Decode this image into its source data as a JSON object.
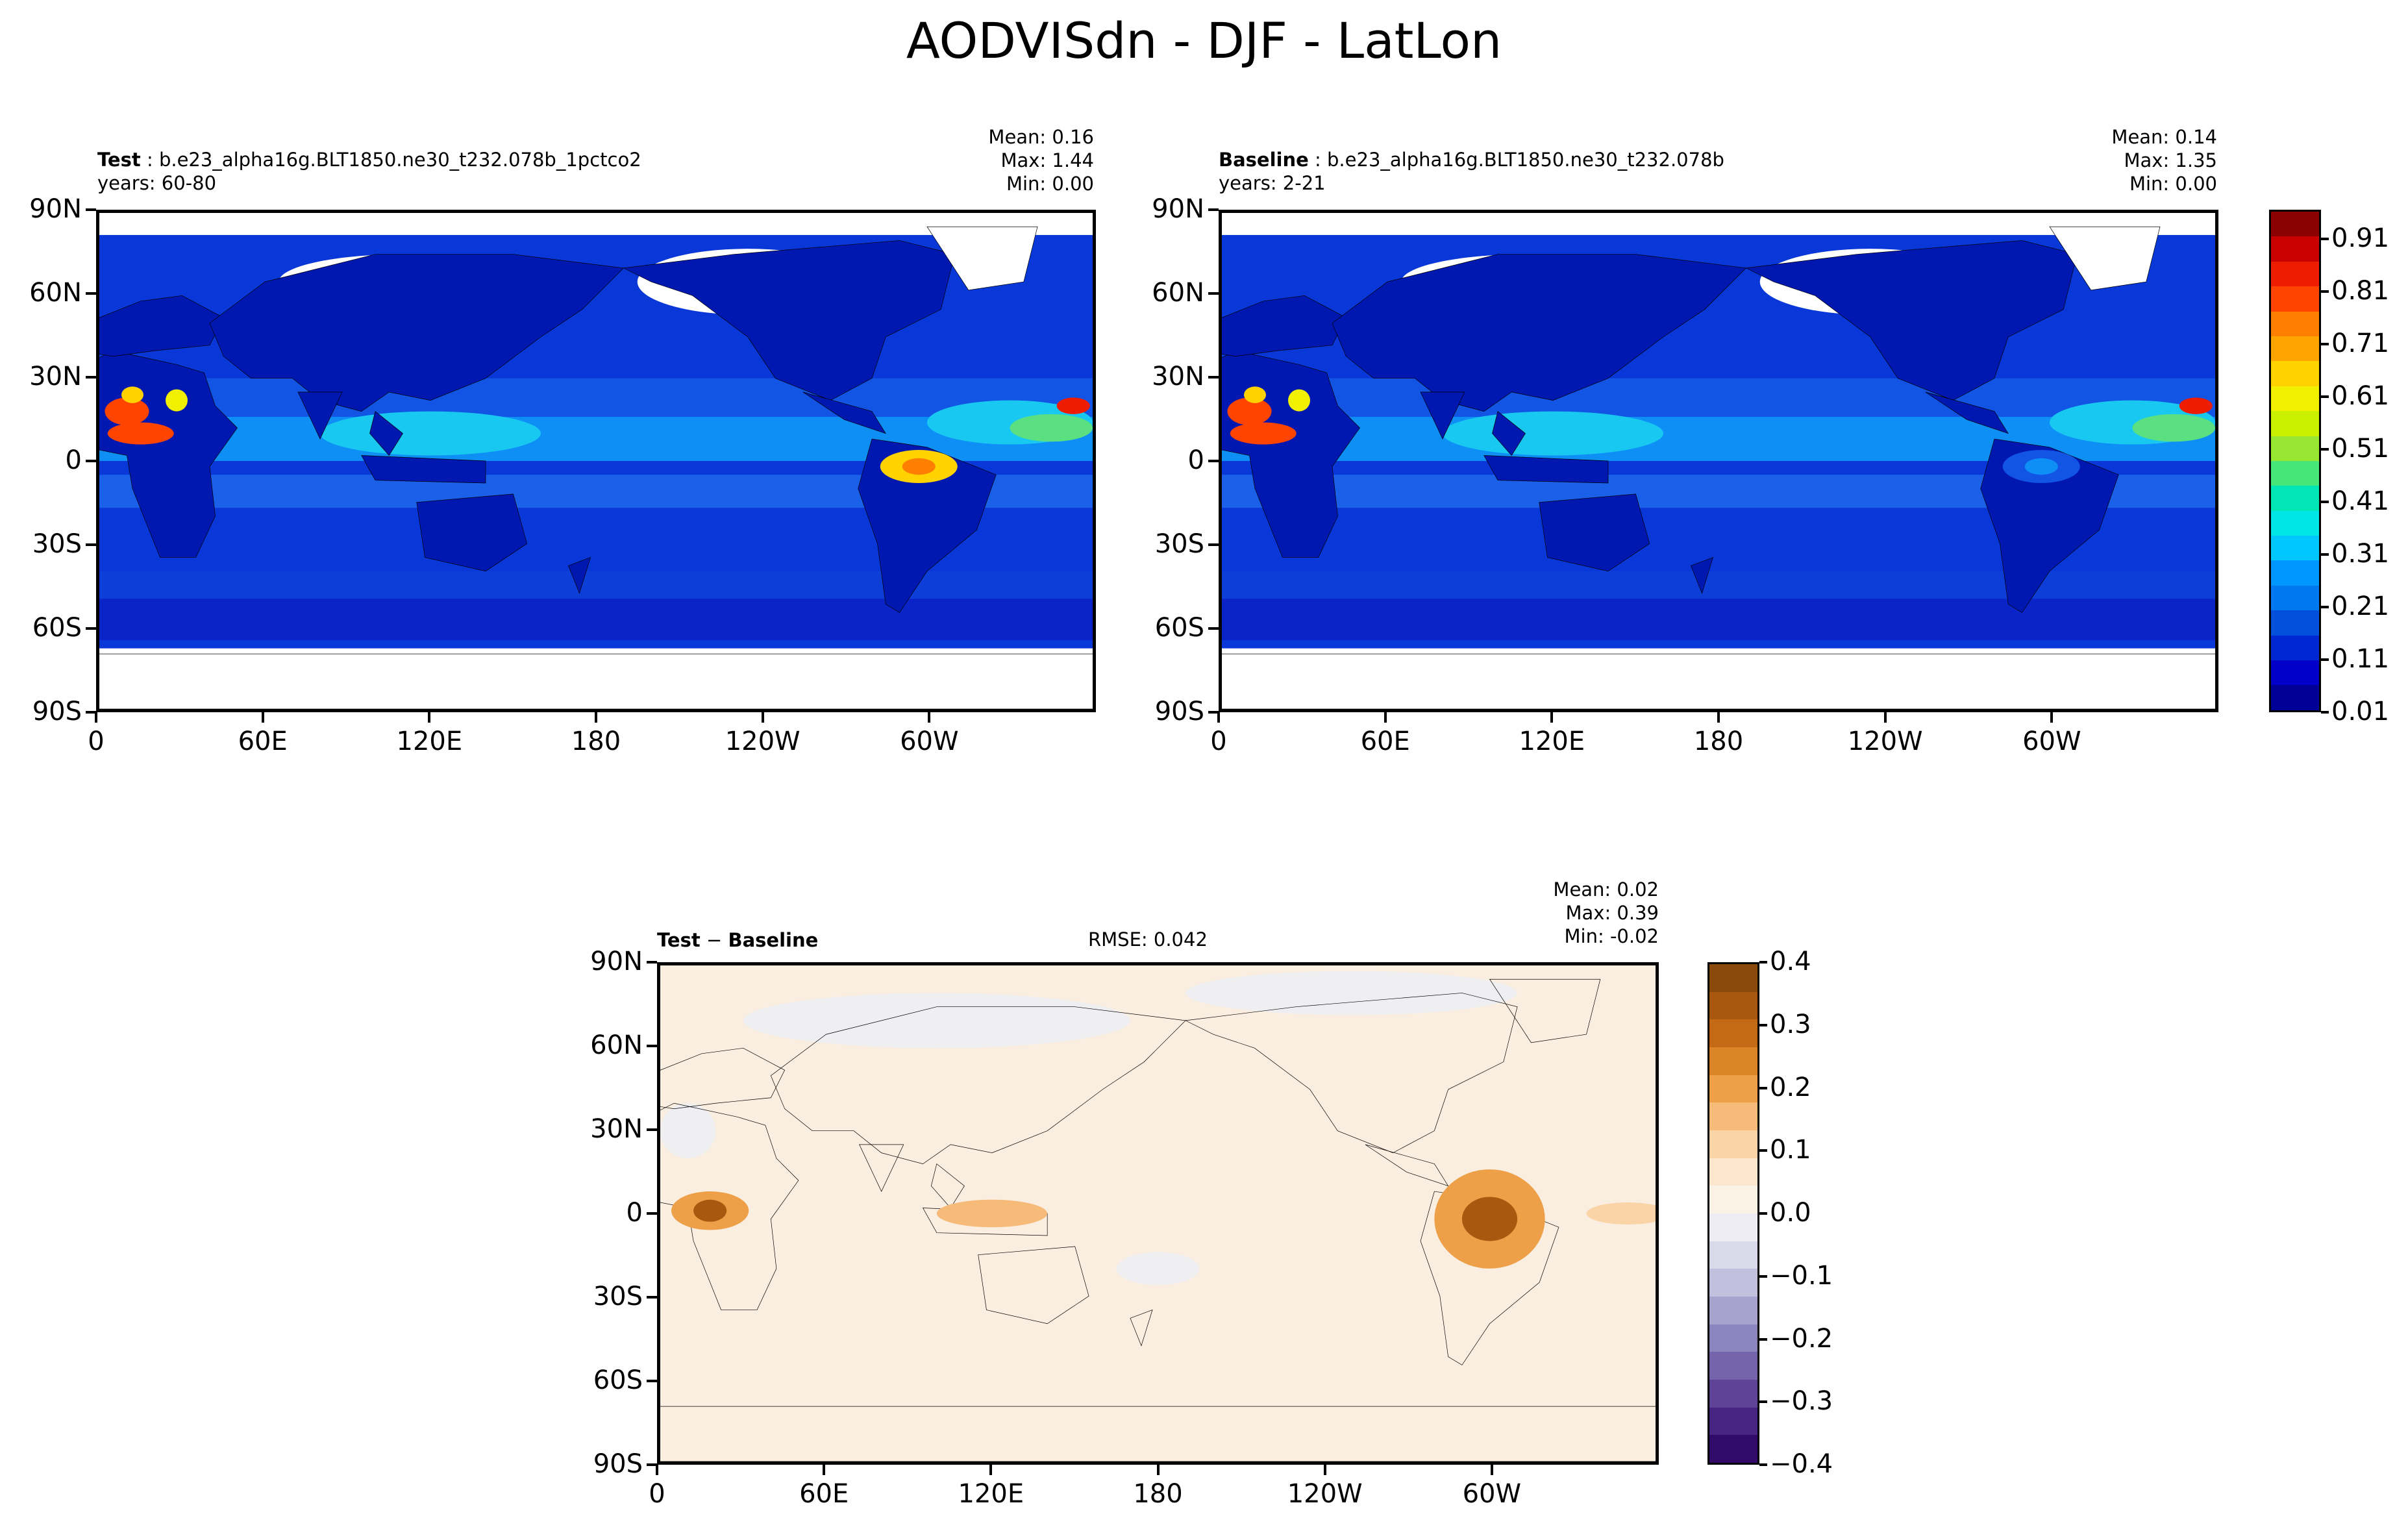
{
  "title": "AODVISdn - DJF - LatLon",
  "panels": {
    "test": {
      "label_bold": "Test",
      "label_rest": " : b.e23_alpha16g.BLT1850.ne30_t232.078b_1pctco2",
      "years": "years: 60-80",
      "mean": "Mean:  0.16",
      "max": "Max:  1.44",
      "min": "Min:  0.00"
    },
    "baseline": {
      "label_bold": "Baseline",
      "label_rest": " : b.e23_alpha16g.BLT1850.ne30_t232.078b",
      "years": "years: 2-21",
      "mean": "Mean:  0.14",
      "max": "Max:  1.35",
      "min": "Min:  0.00"
    },
    "diff": {
      "label_bold": "Test",
      "label_mid": " − ",
      "label_bold2": "Baseline",
      "rmse": "RMSE: 0.042",
      "mean": "Mean:  0.02",
      "max": "Max:  0.39",
      "min": "Min: -0.02"
    }
  },
  "axes": {
    "lat_labels": [
      "90N",
      "60N",
      "30N",
      "0",
      "30S",
      "60S",
      "90S"
    ],
    "lon_labels": [
      "0",
      "60E",
      "120E",
      "180",
      "120W",
      "60W"
    ]
  },
  "colorbars": {
    "aod": {
      "labels": [
        "0.91",
        "0.81",
        "0.71",
        "0.61",
        "0.51",
        "0.41",
        "0.31",
        "0.21",
        "0.11",
        "0.01"
      ],
      "colors": [
        "#8b0000",
        "#c80000",
        "#ee1c00",
        "#ff4400",
        "#ff7f00",
        "#ffa500",
        "#ffd200",
        "#f0f000",
        "#c8f000",
        "#96e632",
        "#46e678",
        "#00e6b4",
        "#00e6e6",
        "#00c8ff",
        "#0096ff",
        "#0078f0",
        "#0050dc",
        "#0028d2",
        "#0000c8",
        "#000096"
      ]
    },
    "diff": {
      "labels": [
        "0.4",
        "0.3",
        "0.2",
        "0.1",
        "0.0",
        "−0.1",
        "−0.2",
        "−0.3",
        "−0.4"
      ],
      "colors": [
        "#8c4a0a",
        "#a8590f",
        "#c46a14",
        "#dc8428",
        "#eda048",
        "#f6bb78",
        "#fad3a6",
        "#fce6cd",
        "#fbf2e6",
        "#ededf3",
        "#d9d9ea",
        "#c2c0dd",
        "#a7a3cf",
        "#8c84bd",
        "#7563ab",
        "#5e4398",
        "#47247f",
        "#320b68"
      ]
    }
  },
  "fields": {
    "ocean_color": "#0a38d8",
    "land_color": "#0018b0",
    "ice_color": "#ffffff",
    "diff_bg": "#faeee0"
  }
}
